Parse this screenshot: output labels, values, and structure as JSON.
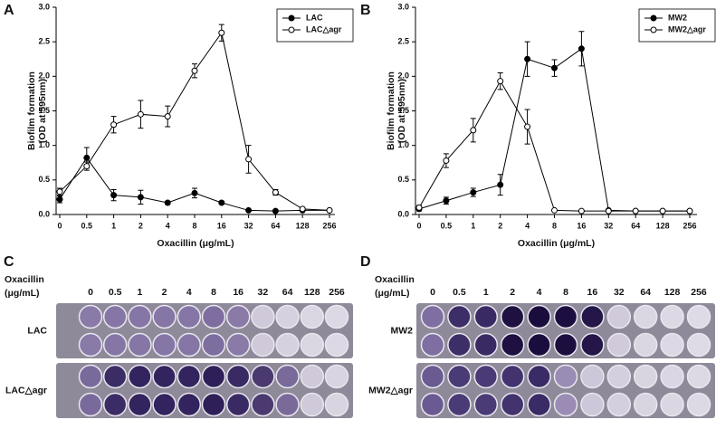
{
  "chart_data": [
    {
      "type": "line",
      "panel": "A",
      "xlabel": "Oxacillin (μg/mL)",
      "ylabel": [
        "Biofilm formation",
        "(OD at 595nm)"
      ],
      "categories": [
        "0",
        "0.5",
        "1",
        "2",
        "4",
        "8",
        "16",
        "32",
        "64",
        "128",
        "256"
      ],
      "ylim": [
        0,
        3
      ],
      "yticks": [
        {
          "value": 0,
          "label": "0.0"
        },
        0.5,
        {
          "value": 1,
          "label": "1.0"
        },
        1.5,
        {
          "value": 2,
          "label": "2.0"
        },
        2.5,
        {
          "value": 3,
          "label": "3.0"
        }
      ],
      "legend": "upper right",
      "series": [
        {
          "name": "LAC",
          "color": "#000000",
          "marker_fill": "#000000",
          "values": [
            0.22,
            0.82,
            0.28,
            0.25,
            0.17,
            0.31,
            0.17,
            0.06,
            0.05,
            0.06,
            0.06
          ],
          "errors": [
            0.05,
            0.15,
            0.08,
            0.1,
            0.02,
            0.07,
            0.02,
            0.01,
            0.01,
            0.01,
            0.01
          ]
        },
        {
          "name": "LAC△agr",
          "color": "#000000",
          "marker_fill": "#ffffff",
          "values": [
            0.33,
            0.7,
            1.3,
            1.45,
            1.42,
            2.08,
            2.63,
            0.8,
            0.32,
            0.08,
            0.06
          ],
          "errors": [
            0.05,
            0.06,
            0.12,
            0.2,
            0.15,
            0.1,
            0.12,
            0.2,
            0.04,
            0.02,
            0.01
          ]
        }
      ]
    },
    {
      "type": "line",
      "panel": "B",
      "xlabel": "Oxacillin (μg/mL)",
      "ylabel": [
        "Biofilm formation",
        "(OD at 595nm)"
      ],
      "categories": [
        "0",
        "0.5",
        "1",
        "2",
        "4",
        "8",
        "16",
        "32",
        "64",
        "128",
        "256"
      ],
      "ylim": [
        0,
        3
      ],
      "yticks": [
        {
          "value": 0,
          "label": "0.0"
        },
        0.5,
        {
          "value": 1,
          "label": "1.0"
        },
        1.5,
        {
          "value": 2,
          "label": "2.0"
        },
        2.5,
        {
          "value": 3,
          "label": "3.0"
        }
      ],
      "legend": "upper right",
      "series": [
        {
          "name": "MW2",
          "color": "#000000",
          "marker_fill": "#000000",
          "values": [
            0.08,
            0.2,
            0.32,
            0.43,
            2.25,
            2.12,
            2.4,
            0.06,
            0.05,
            0.05,
            0.05
          ],
          "errors": [
            0.03,
            0.05,
            0.06,
            0.15,
            0.25,
            0.12,
            0.25,
            0.01,
            0.01,
            0.01,
            0.01
          ]
        },
        {
          "name": "MW2△agr",
          "color": "#000000",
          "marker_fill": "#ffffff",
          "values": [
            0.1,
            0.78,
            1.22,
            1.93,
            1.27,
            0.06,
            0.05,
            0.05,
            0.05,
            0.05,
            0.05
          ],
          "errors": [
            0.03,
            0.1,
            0.17,
            0.12,
            0.25,
            0.01,
            0.01,
            0.01,
            0.01,
            0.01,
            0.01
          ]
        }
      ]
    }
  ],
  "plates": [
    {
      "panel": "C",
      "header": [
        "Oxacillin",
        "(μg/mL)"
      ],
      "concentrations": [
        "0",
        "0.5",
        "1",
        "2",
        "4",
        "8",
        "16",
        "32",
        "64",
        "128",
        "256"
      ],
      "rows": [
        {
          "name": "LAC",
          "colors": [
            "#8a7aa8",
            "#8676a6",
            "#8676a6",
            "#8676a6",
            "#8676a6",
            "#7e6ea0",
            "#8a7aa8",
            "#cfc9da",
            "#d6d1df",
            "#dad6e2",
            "#dcd9e4"
          ]
        },
        {
          "name": "LAC△agr",
          "colors": [
            "#7a6a9c",
            "#3c2c66",
            "#33235e",
            "#33235e",
            "#33235e",
            "#2e1f58",
            "#3a2a64",
            "#4a3a70",
            "#7a6a9a",
            "#cfc9da",
            "#d8d4e0"
          ]
        }
      ]
    },
    {
      "panel": "D",
      "header": [
        "Oxacillin",
        "(μg/mL)"
      ],
      "concentrations": [
        "0",
        "0.5",
        "1",
        "2",
        "4",
        "8",
        "16",
        "32",
        "64",
        "128",
        "256"
      ],
      "rows": [
        {
          "name": "MW2",
          "colors": [
            "#7e6ea2",
            "#3e2e68",
            "#3a2a64",
            "#1e1040",
            "#1a0c3c",
            "#1c0e3e",
            "#241648",
            "#d0cadb",
            "#dad6e2",
            "#dcd9e4",
            "#dedbe6"
          ]
        },
        {
          "name": "MW2△agr",
          "colors": [
            "#6a5a92",
            "#4a3a76",
            "#4a3a76",
            "#42326e",
            "#3a2a66",
            "#9a8cb4",
            "#cdc7d9",
            "#d4cfde",
            "#d8d4e0",
            "#dad6e2",
            "#dcd9e4"
          ]
        }
      ]
    }
  ]
}
